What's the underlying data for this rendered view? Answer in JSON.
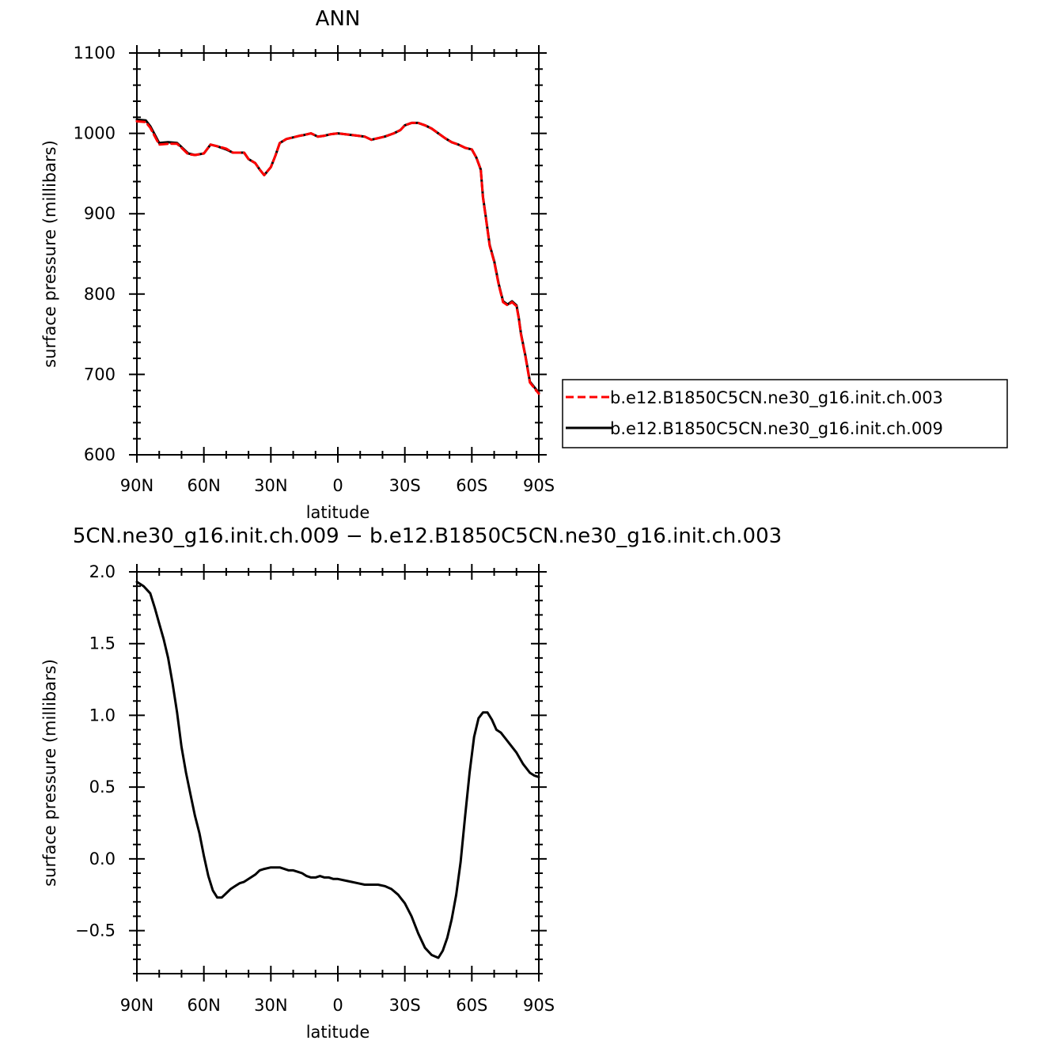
{
  "chart_data": [
    {
      "type": "line",
      "title": "ANN",
      "xlabel": "latitude",
      "ylabel": "surface pressure (millibars)",
      "xlim": [
        90,
        -90
      ],
      "ylim": [
        600,
        1100
      ],
      "x_tick_labels": [
        "90N",
        "60N",
        "30N",
        "0",
        "30S",
        "60S",
        "90S"
      ],
      "y_tick_labels": [
        "600",
        "700",
        "800",
        "900",
        "1000",
        "1100"
      ],
      "legend": "right",
      "series": [
        {
          "name": "b.e12.B1850C5CN.ne30_g16.init.ch.003",
          "color": "#ff0000",
          "dash": "dashed",
          "x": [
            90,
            86,
            84,
            80,
            76,
            72,
            70,
            67,
            64,
            60,
            57,
            54,
            50,
            47,
            44,
            42,
            40,
            37,
            35,
            33,
            30,
            28,
            26,
            23,
            20,
            17,
            15,
            12,
            9,
            6,
            3,
            0,
            -3,
            -6,
            -9,
            -12,
            -15,
            -18,
            -21,
            -25,
            -28,
            -30,
            -33,
            -36,
            -39,
            -42,
            -45,
            -48,
            -51,
            -54,
            -57,
            -60,
            -62,
            -64,
            -65,
            -66,
            -67,
            -68,
            -70,
            -72,
            -74,
            -76,
            -77,
            -78,
            -80,
            -81,
            -82,
            -84,
            -85,
            -86,
            -88,
            -90
          ],
          "y": [
            1015,
            1014,
            1007,
            986,
            987,
            987,
            982,
            974,
            973,
            975,
            986,
            984,
            981,
            976,
            976,
            976,
            968,
            963,
            955,
            948,
            958,
            972,
            988,
            993,
            995,
            997,
            998,
            1000,
            996,
            997,
            999,
            1000,
            999,
            998,
            997,
            996,
            992,
            994,
            996,
            1000,
            1004,
            1010,
            1013,
            1013,
            1010,
            1006,
            1000,
            994,
            989,
            986,
            982,
            980,
            970,
            955,
            920,
            900,
            880,
            860,
            840,
            812,
            790,
            786,
            788,
            790,
            785,
            770,
            750,
            722,
            706,
            690,
            683,
            676
          ]
        },
        {
          "name": "b.e12.B1850C5CN.ne30_g16.init.ch.009",
          "color": "#000000",
          "dash": "solid",
          "x": [
            90,
            86,
            84,
            80,
            76,
            72,
            70,
            67,
            64,
            60,
            57,
            54,
            50,
            47,
            44,
            42,
            40,
            37,
            35,
            33,
            30,
            28,
            26,
            23,
            20,
            17,
            15,
            12,
            9,
            6,
            3,
            0,
            -3,
            -6,
            -9,
            -12,
            -15,
            -18,
            -21,
            -25,
            -28,
            -30,
            -33,
            -36,
            -39,
            -42,
            -45,
            -48,
            -51,
            -54,
            -57,
            -60,
            -62,
            -64,
            -65,
            -66,
            -67,
            -68,
            -70,
            -72,
            -74,
            -76,
            -77,
            -78,
            -80,
            -81,
            -82,
            -84,
            -85,
            -86,
            -88,
            -90
          ],
          "y": [
            1017,
            1016,
            1009,
            988,
            989,
            988,
            983,
            975,
            973,
            975,
            986,
            984,
            980,
            976,
            976,
            976,
            968,
            963,
            955,
            948,
            958,
            972,
            988,
            993,
            995,
            997,
            998,
            1000,
            996,
            997,
            999,
            1000,
            999,
            998,
            997,
            996,
            992,
            994,
            996,
            1000,
            1004,
            1010,
            1013,
            1013,
            1010,
            1006,
            1000,
            994,
            989,
            986,
            982,
            980,
            970,
            955,
            921,
            901,
            881,
            861,
            841,
            813,
            791,
            787,
            789,
            791,
            786,
            771,
            751,
            723,
            707,
            691,
            684,
            677
          ]
        }
      ]
    },
    {
      "type": "line",
      "title": "5CN.ne30_g16.init.ch.009 − b.e12.B1850C5CN.ne30_g16.init.ch.003",
      "xlabel": "latitude",
      "ylabel": "surface pressure (millibars)",
      "xlim": [
        90,
        -90
      ],
      "ylim": [
        -0.8,
        2.0
      ],
      "x_tick_labels": [
        "90N",
        "60N",
        "30N",
        "0",
        "30S",
        "60S",
        "90S"
      ],
      "y_tick_labels": [
        "−0.5",
        "0.0",
        "0.5",
        "1.0",
        "1.5",
        "2.0"
      ],
      "series": [
        {
          "color": "#000000",
          "dash": "solid",
          "x": [
            90,
            87,
            84,
            82,
            80,
            78,
            76,
            74,
            72,
            70,
            68,
            66,
            64,
            62,
            60,
            58,
            56,
            54,
            52,
            50,
            48,
            46,
            44,
            42,
            40,
            37,
            35,
            33,
            30,
            28,
            26,
            24,
            22,
            20,
            18,
            16,
            14,
            12,
            10,
            8,
            6,
            4,
            2,
            0,
            -3,
            -6,
            -9,
            -12,
            -15,
            -18,
            -21,
            -24,
            -27,
            -30,
            -33,
            -36,
            -39,
            -42,
            -45,
            -47,
            -49,
            -51,
            -53,
            -55,
            -57,
            -59,
            -61,
            -63,
            -65,
            -67,
            -69,
            -71,
            -73,
            -75,
            -77,
            -80,
            -83,
            -86,
            -88,
            -90
          ],
          "y": [
            1.93,
            1.9,
            1.85,
            1.75,
            1.64,
            1.53,
            1.4,
            1.22,
            1.02,
            0.78,
            0.6,
            0.45,
            0.3,
            0.18,
            0.02,
            -0.12,
            -0.22,
            -0.27,
            -0.27,
            -0.24,
            -0.21,
            -0.19,
            -0.17,
            -0.16,
            -0.14,
            -0.11,
            -0.08,
            -0.07,
            -0.06,
            -0.06,
            -0.06,
            -0.07,
            -0.08,
            -0.08,
            -0.09,
            -0.1,
            -0.12,
            -0.13,
            -0.13,
            -0.12,
            -0.13,
            -0.13,
            -0.14,
            -0.14,
            -0.15,
            -0.16,
            -0.17,
            -0.18,
            -0.18,
            -0.18,
            -0.19,
            -0.21,
            -0.25,
            -0.31,
            -0.4,
            -0.52,
            -0.62,
            -0.67,
            -0.69,
            -0.64,
            -0.55,
            -0.42,
            -0.25,
            -0.02,
            0.3,
            0.6,
            0.85,
            0.98,
            1.02,
            1.02,
            0.97,
            0.9,
            0.88,
            0.84,
            0.8,
            0.74,
            0.66,
            0.6,
            0.58,
            0.57
          ]
        }
      ]
    }
  ]
}
